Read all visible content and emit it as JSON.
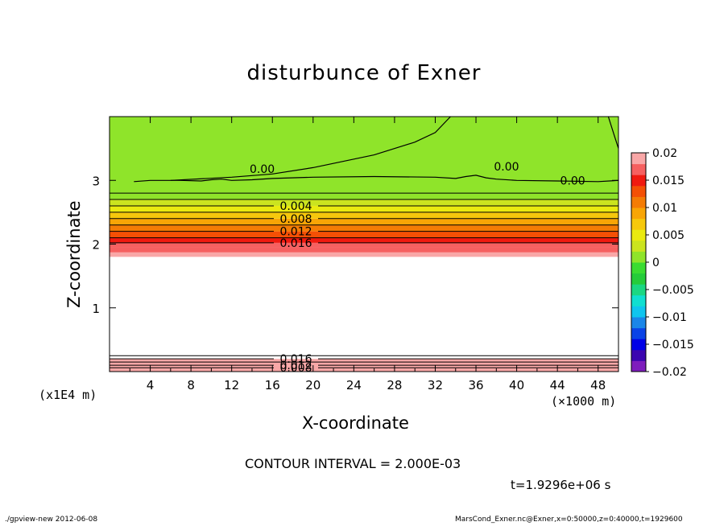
{
  "chart_data": {
    "type": "heatmap",
    "title": "disturbunce of Exner",
    "xlabel": "X-coordinate",
    "ylabel": "Z-coordinate",
    "x_unit_label": "(×1000 m)",
    "y_unit_label": "(x1E4 m)",
    "xlim": [
      0,
      50
    ],
    "ylim": [
      0,
      4
    ],
    "x_ticks": [
      "4",
      "8",
      "12",
      "16",
      "20",
      "24",
      "28",
      "32",
      "36",
      "40",
      "44",
      "48"
    ],
    "y_ticks": [
      "1",
      "2",
      "3"
    ],
    "colorbar": {
      "range": [
        -0.02,
        0.02
      ],
      "ticks": [
        "0.02",
        "0.015",
        "0.01",
        "0.005",
        "0",
        "−0.005",
        "−0.01",
        "−0.015",
        "−0.02"
      ],
      "level_colors": [
        "#7e1dbd",
        "#3b05b0",
        "#0000e6",
        "#0a43e6",
        "#1a86e8",
        "#0fc5ee",
        "#10dfd0",
        "#1bd782",
        "#25cc3a",
        "#3bdc31",
        "#8fe42a",
        "#cbe41f",
        "#eaea10",
        "#f6c80c",
        "#f8a506",
        "#f47c05",
        "#f45005",
        "#f01a10",
        "#f66060",
        "#f9a7a7"
      ]
    },
    "fill_bands": [
      {
        "z_from": 0.0,
        "z_to": 0.1,
        "value": 0.018
      },
      {
        "z_from": 0.1,
        "z_to": 0.2,
        "value": 0.019
      },
      {
        "z_from": 0.2,
        "z_to": 0.28,
        "value": 0.0205
      },
      {
        "z_from": 0.28,
        "z_to": 1.8,
        "value": 0.03
      },
      {
        "z_from": 1.8,
        "z_to": 1.87,
        "value": 0.019
      },
      {
        "z_from": 1.87,
        "z_to": 1.95,
        "value": 0.0175
      },
      {
        "z_from": 1.95,
        "z_to": 2.02,
        "value": 0.0165
      },
      {
        "z_from": 2.02,
        "z_to": 2.1,
        "value": 0.015
      },
      {
        "z_from": 2.1,
        "z_to": 2.2,
        "value": 0.013
      },
      {
        "z_from": 2.2,
        "z_to": 2.3,
        "value": 0.011
      },
      {
        "z_from": 2.3,
        "z_to": 2.4,
        "value": 0.009
      },
      {
        "z_from": 2.4,
        "z_to": 2.5,
        "value": 0.007
      },
      {
        "z_from": 2.5,
        "z_to": 2.6,
        "value": 0.005
      },
      {
        "z_from": 2.6,
        "z_to": 2.7,
        "value": 0.003
      },
      {
        "z_from": 2.7,
        "z_to": 2.8,
        "value": 0.001
      },
      {
        "z_from": 2.8,
        "z_to": 4.0,
        "value": 0.0002
      }
    ],
    "contours_top": [
      {
        "z": 2.02,
        "label": "0.016"
      },
      {
        "z": 2.1
      },
      {
        "z": 2.2,
        "label": "0.012"
      },
      {
        "z": 2.3
      },
      {
        "z": 2.4,
        "label": "0.008"
      },
      {
        "z": 2.5
      },
      {
        "z": 2.6,
        "label": "0.004"
      },
      {
        "z": 2.7
      },
      {
        "z": 2.8
      }
    ],
    "contours_bottom": [
      {
        "z": 0.06,
        "label": "0.008"
      },
      {
        "z": 0.1,
        "label": "0.012"
      },
      {
        "z": 0.15
      },
      {
        "z": 0.2,
        "label": "0.016"
      },
      {
        "z": 0.25
      }
    ],
    "zero_contour_labels": [
      "0.00",
      "0.00",
      "0.00"
    ],
    "contour_interval_text": "CONTOUR INTERVAL = 2.000E-03",
    "time_text": "t=1.9296e+06 s"
  },
  "footer": {
    "left": "./gpview-new  2012-06-08",
    "right": "MarsCond_Exner.nc@Exner,x=0:50000,z=0:40000,t=1929600"
  }
}
